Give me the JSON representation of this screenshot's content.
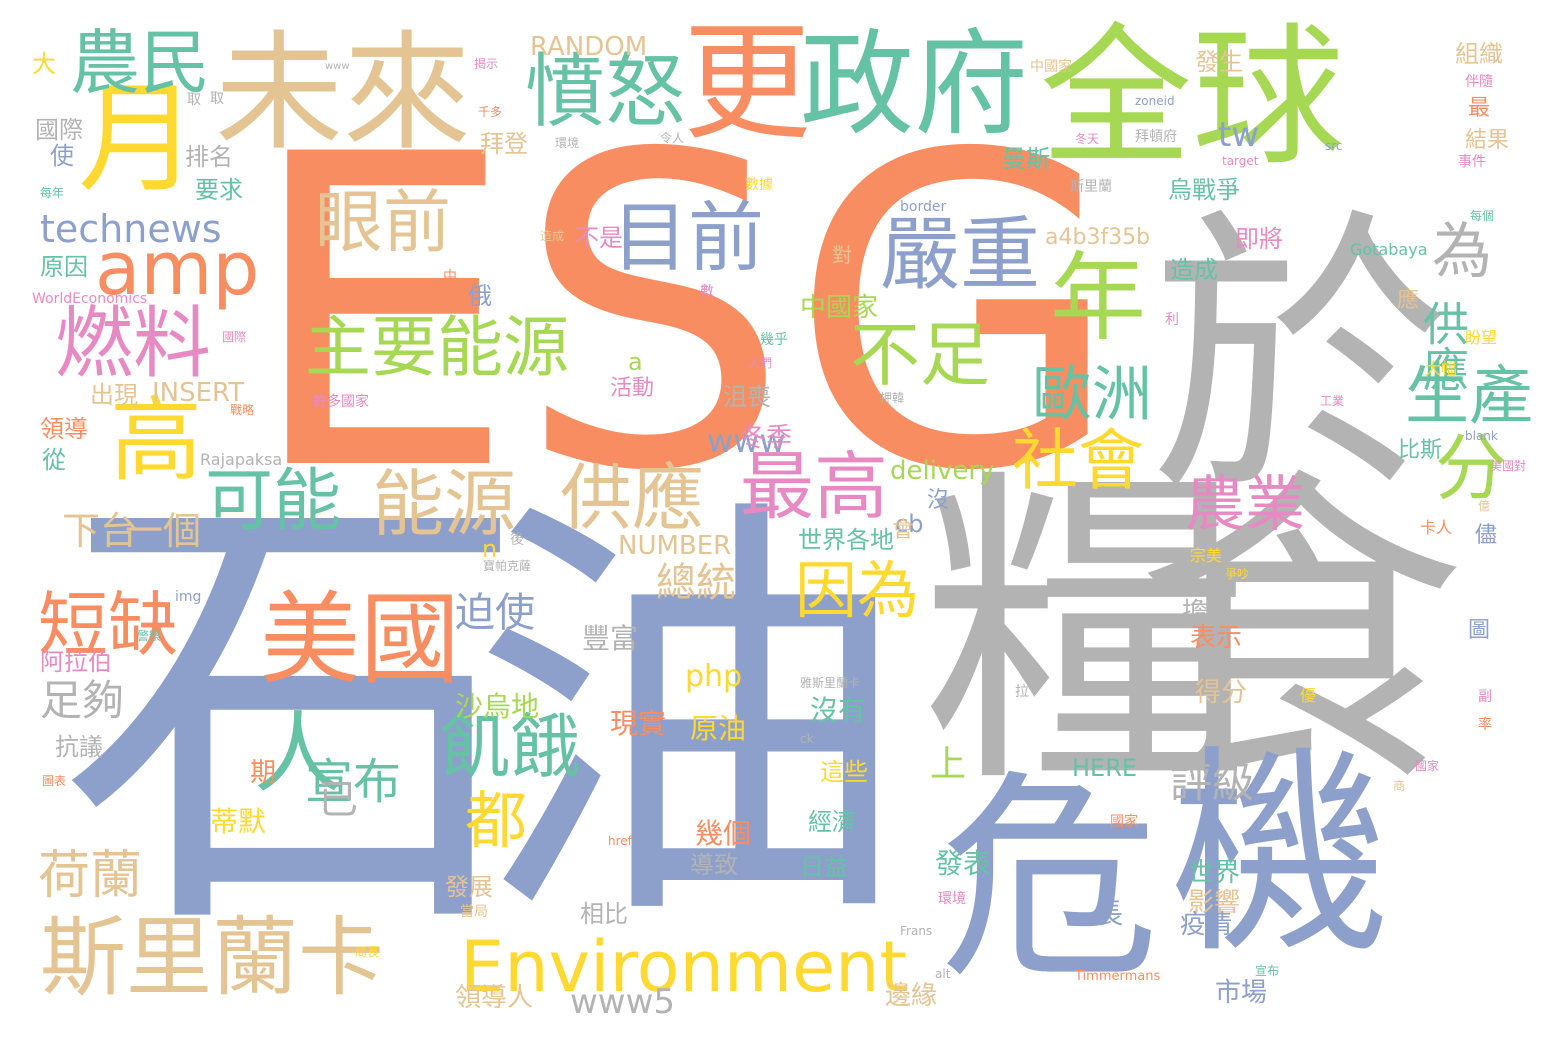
{
  "palette": {
    "orange": "#f98d62",
    "green": "#66c2a5",
    "blue": "#8da0cb",
    "pink": "#e78ac3",
    "lime": "#a6d854",
    "yellow": "#ffd92f",
    "tan": "#e5c494",
    "gray": "#b3b3b3"
  },
  "words": [
    {
      "text": "ESG",
      "c": "orange"
    },
    {
      "text": "石",
      "c": "blue"
    },
    {
      "text": "油",
      "c": "blue"
    },
    {
      "text": "糧",
      "c": "gray"
    },
    {
      "text": "食",
      "c": "gray"
    },
    {
      "text": "於",
      "c": "gray"
    },
    {
      "text": "全球",
      "c": "lime"
    },
    {
      "text": "危",
      "c": "blue"
    },
    {
      "text": "機",
      "c": "blue"
    },
    {
      "text": "未來",
      "c": "tan"
    },
    {
      "text": "更",
      "c": "orange"
    },
    {
      "text": "政府",
      "c": "green"
    },
    {
      "text": "月",
      "c": "yellow"
    },
    {
      "text": "農民",
      "c": "green"
    },
    {
      "text": "amp",
      "c": "orange"
    },
    {
      "text": "燃料",
      "c": "pink"
    },
    {
      "text": "高",
      "c": "yellow"
    },
    {
      "text": "憤怒",
      "c": "green"
    },
    {
      "text": "眼前",
      "c": "tan"
    },
    {
      "text": "目前",
      "c": "blue"
    },
    {
      "text": "嚴重",
      "c": "blue"
    },
    {
      "text": "為",
      "c": "gray"
    },
    {
      "text": "年",
      "c": "lime"
    },
    {
      "text": "主要能源",
      "c": "lime"
    },
    {
      "text": "不足",
      "c": "lime"
    },
    {
      "text": "歐洲",
      "c": "green"
    },
    {
      "text": "供應",
      "c": "green"
    },
    {
      "text": "生產",
      "c": "green"
    },
    {
      "text": "可能",
      "c": "green"
    },
    {
      "text": "能源",
      "c": "tan"
    },
    {
      "text": "供應",
      "c": "tan"
    },
    {
      "text": "最高",
      "c": "pink"
    },
    {
      "text": "社會",
      "c": "yellow"
    },
    {
      "text": "分",
      "c": "lime"
    },
    {
      "text": "農業",
      "c": "pink"
    },
    {
      "text": "美國",
      "c": "orange"
    },
    {
      "text": "短缺",
      "c": "orange"
    },
    {
      "text": "因為",
      "c": "yellow"
    },
    {
      "text": "斯里蘭卡",
      "c": "tan"
    },
    {
      "text": "Environment",
      "c": "yellow"
    },
    {
      "text": "人",
      "c": "green"
    },
    {
      "text": "都",
      "c": "yellow"
    },
    {
      "text": "飢餓",
      "c": "green"
    },
    {
      "text": "宣布",
      "c": "green"
    },
    {
      "text": "荷蘭",
      "c": "tan"
    },
    {
      "text": "technews",
      "c": "blue"
    },
    {
      "text": "www",
      "c": "blue"
    },
    {
      "text": "www5",
      "c": "gray"
    },
    {
      "text": "tw",
      "c": "blue"
    },
    {
      "text": "a4b3f35b",
      "c": "tan"
    },
    {
      "text": "RANDOM",
      "c": "tan"
    },
    {
      "text": "INSERT",
      "c": "tan"
    },
    {
      "text": "NUMBER",
      "c": "tan"
    },
    {
      "text": "delivery",
      "c": "lime"
    },
    {
      "text": "php",
      "c": "yellow"
    },
    {
      "text": "HERE",
      "c": "green"
    },
    {
      "text": "cb",
      "c": "blue"
    },
    {
      "text": "n",
      "c": "yellow"
    },
    {
      "text": "a",
      "c": "lime"
    },
    {
      "text": "總統",
      "c": "tan"
    },
    {
      "text": "迫使",
      "c": "blue"
    },
    {
      "text": "足夠",
      "c": "gray"
    },
    {
      "text": "下台",
      "c": "tan"
    },
    {
      "text": "一個",
      "c": "tan"
    },
    {
      "text": "評級",
      "c": "gray"
    },
    {
      "text": "上",
      "c": "lime"
    },
    {
      "text": "已",
      "c": "gray"
    },
    {
      "text": "期",
      "c": "orange"
    },
    {
      "text": "蒂默",
      "c": "yellow"
    },
    {
      "text": "原油",
      "c": "yellow"
    },
    {
      "text": "幾個",
      "c": "orange"
    },
    {
      "text": "經濟",
      "c": "green"
    },
    {
      "text": "日益",
      "c": "green"
    },
    {
      "text": "沒有",
      "c": "green"
    },
    {
      "text": "這些",
      "c": "yellow"
    },
    {
      "text": "沙烏地",
      "c": "lime"
    },
    {
      "text": "現實",
      "c": "orange"
    },
    {
      "text": "豐富",
      "c": "gray"
    },
    {
      "text": "擔心",
      "c": "gray"
    },
    {
      "text": "表示",
      "c": "orange"
    },
    {
      "text": "得分",
      "c": "tan"
    },
    {
      "text": "世界",
      "c": "green"
    },
    {
      "text": "影響",
      "c": "tan"
    },
    {
      "text": "疫情",
      "c": "blue"
    },
    {
      "text": "市場",
      "c": "blue"
    },
    {
      "text": "發表",
      "c": "green"
    },
    {
      "text": "長",
      "c": "blue"
    },
    {
      "text": "邊緣",
      "c": "tan"
    },
    {
      "text": "領導人",
      "c": "tan"
    },
    {
      "text": "發展",
      "c": "tan"
    },
    {
      "text": "相比",
      "c": "gray"
    },
    {
      "text": "導致",
      "c": "gray"
    },
    {
      "text": "世界各地",
      "c": "green"
    },
    {
      "text": "中國家",
      "c": "lime"
    },
    {
      "text": "冬季",
      "c": "pink"
    },
    {
      "text": "拜登",
      "c": "tan"
    },
    {
      "text": "排名",
      "c": "gray"
    },
    {
      "text": "要求",
      "c": "green"
    },
    {
      "text": "國際",
      "c": "gray"
    },
    {
      "text": "使",
      "c": "blue"
    },
    {
      "text": "原因",
      "c": "green"
    },
    {
      "text": "出現",
      "c": "tan"
    },
    {
      "text": "領導",
      "c": "orange"
    },
    {
      "text": "從",
      "c": "green"
    },
    {
      "text": "阿拉伯",
      "c": "pink"
    },
    {
      "text": "抗議",
      "c": "gray"
    },
    {
      "text": "發生",
      "c": "tan"
    },
    {
      "text": "組織",
      "c": "tan"
    },
    {
      "text": "曼斯",
      "c": "green"
    },
    {
      "text": "烏戰爭",
      "c": "green"
    },
    {
      "text": "即將",
      "c": "pink"
    },
    {
      "text": "造成",
      "c": "green"
    },
    {
      "text": "不是",
      "c": "pink"
    },
    {
      "text": "俄",
      "c": "blue"
    },
    {
      "text": "大",
      "c": "yellow"
    },
    {
      "text": "沮喪",
      "c": "gray"
    },
    {
      "text": "活動",
      "c": "pink"
    },
    {
      "text": "比斯",
      "c": "green"
    },
    {
      "text": "應",
      "c": "tan"
    },
    {
      "text": "最",
      "c": "orange"
    },
    {
      "text": "結果",
      "c": "tan"
    },
    {
      "text": "會",
      "c": "tan"
    },
    {
      "text": "沒",
      "c": "blue"
    },
    {
      "text": "對",
      "c": "tan"
    },
    {
      "text": "儘",
      "c": "blue"
    },
    {
      "text": "圖",
      "c": "blue"
    },
    {
      "text": "Gotabaya",
      "c": "green"
    },
    {
      "text": "Rajapaksa",
      "c": "gray"
    },
    {
      "text": "WorldEconomics",
      "c": "pink"
    },
    {
      "text": "zoneid",
      "c": "blue"
    },
    {
      "text": "target",
      "c": "pink"
    },
    {
      "text": "border",
      "c": "blue"
    },
    {
      "text": "src",
      "c": "blue"
    },
    {
      "text": "blank",
      "c": "blue"
    },
    {
      "text": "img",
      "c": "blue"
    },
    {
      "text": "href",
      "c": "orange"
    },
    {
      "text": "Frans",
      "c": "gray"
    },
    {
      "text": "Timmermans",
      "c": "orange"
    },
    {
      "text": "alt",
      "c": "gray"
    },
    {
      "text": "ck",
      "c": "gray"
    },
    {
      "text": "www",
      "c": "gray"
    },
    {
      "text": "揭示",
      "c": "pink"
    },
    {
      "text": "中國家",
      "c": "tan"
    },
    {
      "text": "千多",
      "c": "orange"
    },
    {
      "text": "環境",
      "c": "gray"
    },
    {
      "text": "令人",
      "c": "gray"
    },
    {
      "text": "冬天",
      "c": "pink"
    },
    {
      "text": "拜頓府",
      "c": "gray"
    },
    {
      "text": "斯里蘭",
      "c": "gray"
    },
    {
      "text": "伴隨",
      "c": "pink"
    },
    {
      "text": "事件",
      "c": "pink"
    },
    {
      "text": "每年",
      "c": "green"
    },
    {
      "text": "數據",
      "c": "yellow"
    },
    {
      "text": "造成",
      "c": "tan"
    },
    {
      "text": "美國對",
      "c": "pink"
    },
    {
      "text": "許多國家",
      "c": "pink"
    },
    {
      "text": "寶帕克薩",
      "c": "gray"
    },
    {
      "text": "警察",
      "c": "green"
    },
    {
      "text": "大幅",
      "c": "yellow"
    },
    {
      "text": "盼望",
      "c": "yellow"
    },
    {
      "text": "卡人",
      "c": "orange"
    },
    {
      "text": "宗美",
      "c": "yellow"
    },
    {
      "text": "雅斯里蘭卡",
      "c": "gray"
    },
    {
      "text": "人們",
      "c": "pink"
    },
    {
      "text": "幾乎",
      "c": "green"
    },
    {
      "text": "押韓",
      "c": "gray"
    },
    {
      "text": "國際",
      "c": "pink"
    },
    {
      "text": "每個",
      "c": "green"
    },
    {
      "text": "國家",
      "c": "orange"
    },
    {
      "text": "利",
      "c": "pink"
    },
    {
      "text": "數",
      "c": "pink"
    },
    {
      "text": "拉",
      "c": "gray"
    },
    {
      "text": "後",
      "c": "gray"
    },
    {
      "text": "中",
      "c": "orange"
    },
    {
      "text": "取",
      "c": "gray"
    },
    {
      "text": "取",
      "c": "gray"
    },
    {
      "text": "副",
      "c": "pink"
    },
    {
      "text": "率",
      "c": "orange"
    },
    {
      "text": "億",
      "c": "tan"
    },
    {
      "text": "優",
      "c": "yellow"
    },
    {
      "text": "當局",
      "c": "tan"
    },
    {
      "text": "環境",
      "c": "pink"
    },
    {
      "text": "戰略",
      "c": "orange"
    },
    {
      "text": "圖表",
      "c": "orange"
    },
    {
      "text": "宣布",
      "c": "green"
    },
    {
      "text": "局長",
      "c": "yellow"
    },
    {
      "text": "國家",
      "c": "pink"
    },
    {
      "text": "商",
      "c": "tan"
    },
    {
      "text": "工業",
      "c": "pink"
    },
    {
      "text": "爭吵",
      "c": "yellow"
    }
  ]
}
